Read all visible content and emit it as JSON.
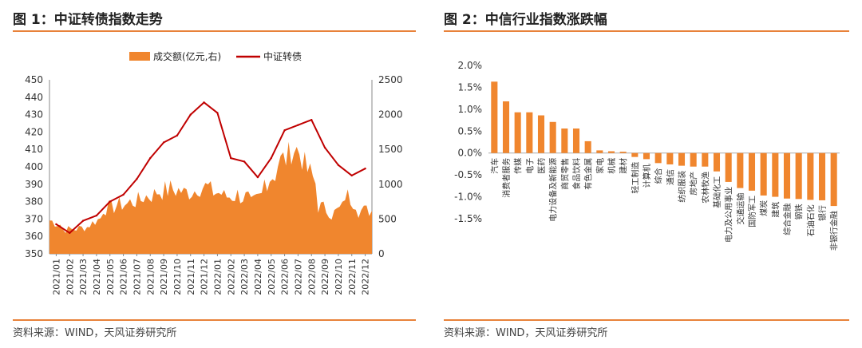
{
  "left_panel": {
    "title": "图 1：中证转债指数走势",
    "source": "资料来源：WIND，天风证券研究所"
  },
  "right_panel": {
    "title": "图 2：中信行业指数涨跌幅",
    "source": "资料来源：WIND，天风证券研究所"
  },
  "colors": {
    "accent": "#e8823a",
    "bar": "#f0862e",
    "line": "#c00000"
  },
  "chart_data": [
    {
      "type": "line",
      "title": "中证转债指数走势",
      "legend": [
        "成交额(亿元,右)",
        "中证转债"
      ],
      "legend_position": "top",
      "categories": [
        "2021/01",
        "2021/02",
        "2021/03",
        "2021/04",
        "2021/05",
        "2021/06",
        "2021/07",
        "2021/08",
        "2021/09",
        "2021/10",
        "2021/11",
        "2021/12",
        "2022/01",
        "2022/02",
        "2022/03",
        "2022/04",
        "2022/05",
        "2022/06",
        "2022/07",
        "2022/08",
        "2022/09",
        "2022/10",
        "2022/11",
        "2022/12"
      ],
      "y_left_ticks": [
        350,
        360,
        370,
        380,
        390,
        400,
        410,
        420,
        430,
        440,
        450
      ],
      "y_right_ticks": [
        0,
        500,
        1000,
        1500,
        2000,
        2500
      ],
      "ylim_left": [
        350,
        450
      ],
      "ylim_right": [
        0,
        2500
      ],
      "series": [
        {
          "name": "中证转债",
          "axis": "left",
          "values": [
            367,
            362,
            369,
            372,
            380,
            384,
            393,
            405,
            414,
            418,
            430,
            437,
            431,
            405,
            403,
            394,
            405,
            421,
            424,
            427,
            411,
            401,
            395,
            399
          ]
        },
        {
          "name": "成交额(亿元,右)",
          "axis": "right",
          "values": [
            480,
            350,
            360,
            420,
            650,
            700,
            740,
            820,
            900,
            930,
            870,
            980,
            900,
            820,
            850,
            700,
            1050,
            1300,
            1550,
            1250,
            680,
            560,
            850,
            620
          ]
        }
      ]
    },
    {
      "type": "bar",
      "title": "中信行业指数涨跌幅",
      "ylim": [
        -1.5,
        2.0
      ],
      "y_ticks": [
        "2.0%",
        "1.5%",
        "1.0%",
        "0.5%",
        "0.0%",
        "-0.5%",
        "-1.0%",
        "-1.5%"
      ],
      "y_tick_values": [
        2.0,
        1.5,
        1.0,
        0.5,
        0.0,
        -0.5,
        -1.0,
        -1.5
      ],
      "categories": [
        "汽车",
        "消费者服务",
        "传媒",
        "电子",
        "医药",
        "电力设备及新能源",
        "商贸零售",
        "食品饮料",
        "有色金属",
        "家电",
        "机械",
        "建材",
        "轻工制造",
        "计算机",
        "综合",
        "通信",
        "纺织服装",
        "房地产",
        "农林牧渔",
        "基础化工",
        "电力及公用事业",
        "交通运输",
        "国防军工",
        "煤炭",
        "建筑",
        "综合金融",
        "钢铁",
        "石油石化",
        "银行",
        "非银行金融"
      ],
      "values": [
        1.63,
        1.18,
        0.93,
        0.93,
        0.86,
        0.71,
        0.56,
        0.56,
        0.27,
        0.06,
        0.04,
        0.03,
        -0.09,
        -0.14,
        -0.23,
        -0.26,
        -0.29,
        -0.31,
        -0.31,
        -0.42,
        -0.66,
        -0.8,
        -0.86,
        -0.97,
        -1.0,
        -1.04,
        -1.05,
        -1.07,
        -1.08,
        -1.21
      ]
    }
  ]
}
